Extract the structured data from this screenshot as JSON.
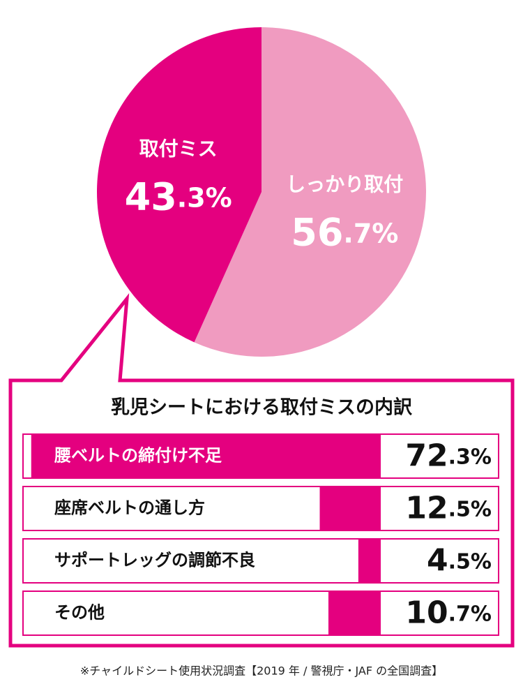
{
  "chart_data": [
    {
      "type": "pie",
      "categories": [
        "しっかり取付",
        "取付ミス"
      ],
      "values": [
        56.7,
        43.3
      ],
      "value_labels": [
        "56.7%",
        "43.3%"
      ],
      "colors": [
        "#f09bc0",
        "#e4007f"
      ]
    },
    {
      "type": "bar",
      "orientation": "horizontal",
      "title": "乳児シートにおける取付ミスの内訳",
      "categories": [
        "腰ベルトの締付け不足",
        "座席ベルトの通し方",
        "サポートレッグの調節不良",
        "その他"
      ],
      "values": [
        72.3,
        12.5,
        4.5,
        10.7
      ],
      "value_labels": [
        "72.3%",
        "12.5%",
        "4.5%",
        "10.7%"
      ],
      "color": "#e4007f",
      "xlim": [
        0,
        74
      ]
    }
  ],
  "footnote": "※チャイルドシート使用状況調査【2019 年 / 警視庁・JAF の全国調査】"
}
